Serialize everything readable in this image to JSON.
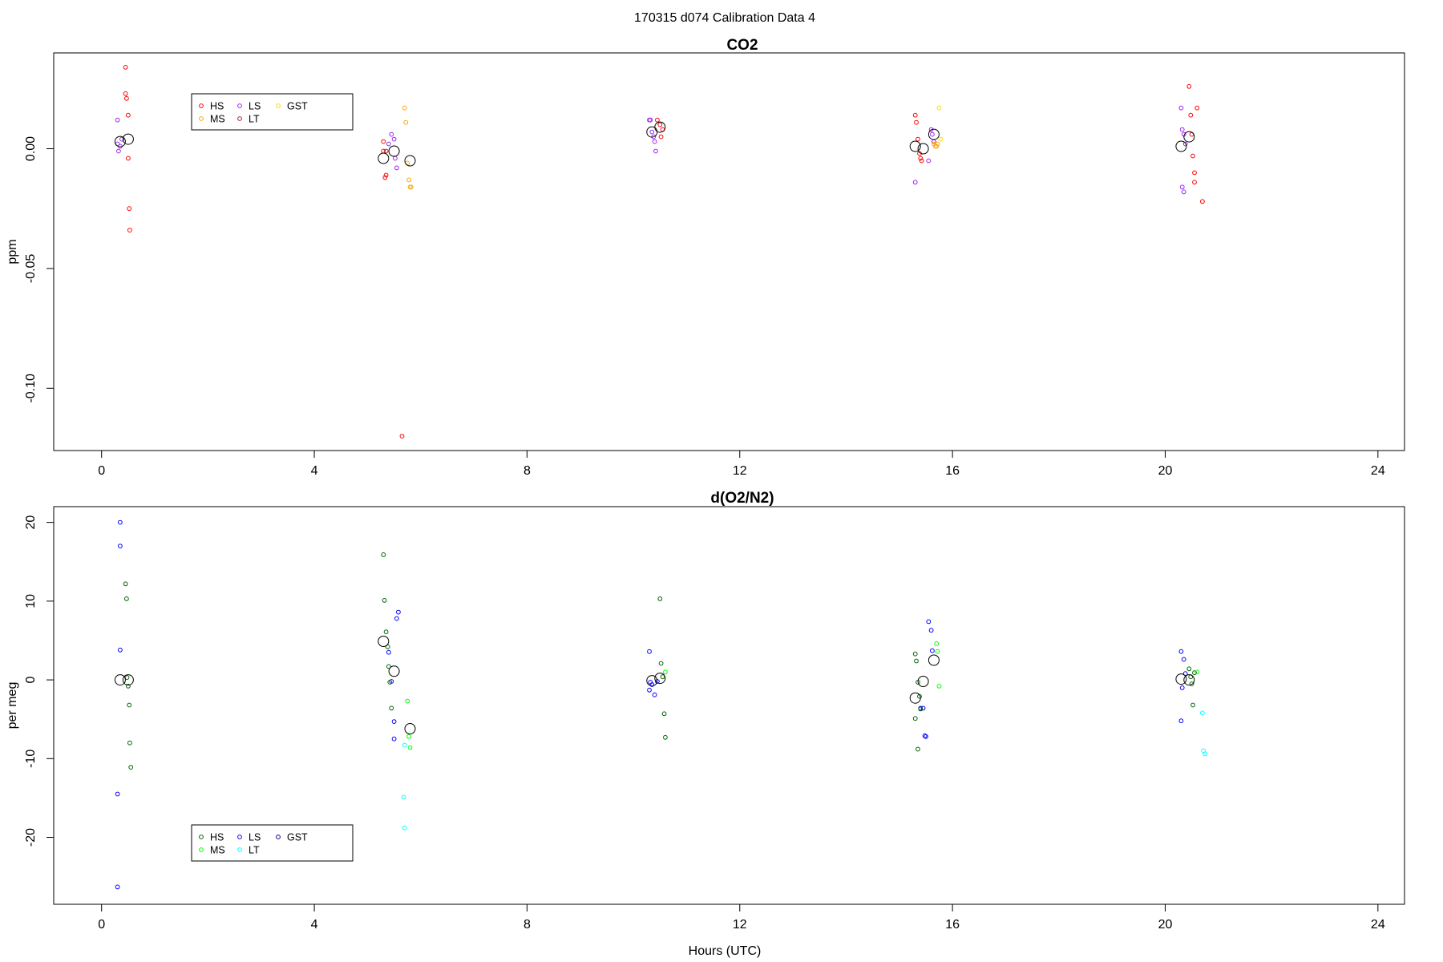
{
  "page": {
    "title": "170315   d074   Calibration Data 4"
  },
  "chart_data": [
    {
      "type": "scatter",
      "title": "CO2",
      "xlabel": "",
      "ylabel": "ppm",
      "xlim": [
        -0.9,
        24.5
      ],
      "ylim": [
        -0.126,
        0.04
      ],
      "xticks": [
        0,
        4,
        8,
        12,
        16,
        20,
        24
      ],
      "yticks": [
        0.0,
        -0.05,
        -0.1
      ],
      "ytick_labels": [
        "0.00",
        "-0.05",
        "-0.10"
      ],
      "grid": false,
      "legend_position": "top-left",
      "legend": [
        {
          "label": "HS",
          "color": "#ff0000"
        },
        {
          "label": "MS",
          "color": "#ffa500"
        },
        {
          "label": "LS",
          "color": "#a020f0"
        },
        {
          "label": "LT",
          "color": "#b22222"
        },
        {
          "label": "GST",
          "color": "#ffd700"
        }
      ],
      "series": [
        {
          "color": "#ff0000",
          "points": [
            [
              0.45,
              0.034
            ],
            [
              0.45,
              0.023
            ],
            [
              0.47,
              0.021
            ],
            [
              0.5,
              0.014
            ],
            [
              0.5,
              -0.004
            ],
            [
              0.52,
              -0.025
            ],
            [
              0.53,
              -0.034
            ],
            [
              5.3,
              0.003
            ],
            [
              5.3,
              -0.001
            ],
            [
              5.33,
              -0.012
            ],
            [
              5.35,
              -0.011
            ],
            [
              5.65,
              -0.12
            ],
            [
              10.45,
              0.012
            ],
            [
              10.5,
              0.01
            ],
            [
              10.52,
              0.005
            ],
            [
              10.55,
              0.008
            ],
            [
              15.3,
              0.014
            ],
            [
              15.32,
              0.011
            ],
            [
              15.35,
              0.004
            ],
            [
              15.38,
              -0.002
            ],
            [
              15.4,
              -0.004
            ],
            [
              15.42,
              -0.005
            ],
            [
              20.45,
              0.026
            ],
            [
              20.48,
              0.014
            ],
            [
              20.5,
              0.006
            ],
            [
              20.52,
              -0.003
            ],
            [
              20.55,
              -0.01
            ],
            [
              20.55,
              -0.014
            ],
            [
              20.6,
              0.017
            ],
            [
              20.7,
              -0.022
            ]
          ]
        },
        {
          "color": "#a020f0",
          "points": [
            [
              0.3,
              0.012
            ],
            [
              0.3,
              0.002
            ],
            [
              0.32,
              -0.001
            ],
            [
              0.35,
              0.001
            ],
            [
              0.38,
              0.004
            ],
            [
              5.4,
              0.002
            ],
            [
              5.45,
              0.006
            ],
            [
              5.5,
              0.004
            ],
            [
              5.52,
              -0.004
            ],
            [
              5.55,
              -0.008
            ],
            [
              10.3,
              0.012
            ],
            [
              10.32,
              0.012
            ],
            [
              10.35,
              0.007
            ],
            [
              10.38,
              0.005
            ],
            [
              10.4,
              0.003
            ],
            [
              10.42,
              -0.001
            ],
            [
              15.6,
              0.008
            ],
            [
              15.62,
              0.006
            ],
            [
              15.65,
              0.003
            ],
            [
              15.55,
              -0.005
            ],
            [
              15.3,
              -0.014
            ],
            [
              20.3,
              0.017
            ],
            [
              20.32,
              0.008
            ],
            [
              20.35,
              0.006
            ],
            [
              20.38,
              0.002
            ],
            [
              20.32,
              -0.016
            ],
            [
              20.35,
              -0.018
            ]
          ]
        },
        {
          "color": "#ffa500",
          "points": [
            [
              5.7,
              0.017
            ],
            [
              5.72,
              0.011
            ],
            [
              5.75,
              -0.006
            ],
            [
              5.78,
              -0.013
            ],
            [
              5.8,
              -0.016
            ],
            [
              5.82,
              -0.016
            ],
            [
              15.65,
              0.002
            ],
            [
              15.68,
              0.001
            ],
            [
              15.7,
              0.001
            ],
            [
              15.72,
              0.002
            ]
          ]
        },
        {
          "color": "#b22222",
          "points": [
            [
              5.35,
              -0.001
            ]
          ]
        },
        {
          "color": "#ffd700",
          "points": [
            [
              15.75,
              0.017
            ],
            [
              15.78,
              0.004
            ]
          ]
        },
        {
          "color": "#000000",
          "kind": "mean",
          "points": [
            [
              0.35,
              0.003
            ],
            [
              0.5,
              0.004
            ],
            [
              5.3,
              -0.004
            ],
            [
              5.5,
              -0.001
            ],
            [
              5.8,
              -0.005
            ],
            [
              10.35,
              0.007
            ],
            [
              10.5,
              0.009
            ],
            [
              15.3,
              0.001
            ],
            [
              15.45,
              0.0
            ],
            [
              15.65,
              0.006
            ],
            [
              20.3,
              0.001
            ],
            [
              20.45,
              0.005
            ]
          ]
        }
      ]
    },
    {
      "type": "scatter",
      "title": "d(O2/N2)",
      "xlabel": "Hours (UTC)",
      "ylabel": "per meg",
      "xlim": [
        -0.9,
        24.5
      ],
      "ylim": [
        -28.5,
        22
      ],
      "xticks": [
        0,
        4,
        8,
        12,
        16,
        20,
        24
      ],
      "yticks": [
        20,
        10,
        0,
        -10,
        -20
      ],
      "ytick_labels": [
        "20",
        "10",
        "0",
        "-10",
        "-20"
      ],
      "grid": false,
      "legend_position": "bottom-left",
      "legend": [
        {
          "label": "HS",
          "color": "#006400"
        },
        {
          "label": "MS",
          "color": "#00ff00"
        },
        {
          "label": "LS",
          "color": "#0000ff"
        },
        {
          "label": "LT",
          "color": "#00ffff"
        },
        {
          "label": "GST",
          "color": "#00008b"
        }
      ],
      "series": [
        {
          "color": "#0000ff",
          "points": [
            [
              0.35,
              20
            ],
            [
              0.35,
              17
            ],
            [
              0.35,
              3.8
            ],
            [
              0.3,
              -14.5
            ],
            [
              0.3,
              -26.3
            ],
            [
              5.4,
              3.5
            ],
            [
              5.45,
              -0.2
            ],
            [
              5.5,
              -5.3
            ],
            [
              5.5,
              -7.5
            ],
            [
              5.55,
              7.8
            ],
            [
              5.58,
              8.6
            ],
            [
              10.3,
              3.6
            ],
            [
              10.3,
              -1.3
            ],
            [
              10.32,
              -0.3
            ],
            [
              10.35,
              -0.6
            ],
            [
              10.4,
              -1.9
            ],
            [
              10.45,
              -0.2
            ],
            [
              15.55,
              7.4
            ],
            [
              15.6,
              6.3
            ],
            [
              15.62,
              3.7
            ],
            [
              15.45,
              -3.6
            ],
            [
              15.48,
              -7.1
            ],
            [
              15.5,
              -7.2
            ],
            [
              15.4,
              -3.6
            ],
            [
              20.3,
              3.6
            ],
            [
              20.35,
              2.6
            ],
            [
              20.38,
              0.8
            ],
            [
              20.32,
              -1.0
            ],
            [
              20.3,
              -5.2
            ]
          ]
        },
        {
          "color": "#006400",
          "points": [
            [
              0.45,
              12.2
            ],
            [
              0.47,
              10.3
            ],
            [
              0.48,
              0.3
            ],
            [
              0.5,
              -0.8
            ],
            [
              0.52,
              -3.2
            ],
            [
              0.53,
              -8.0
            ],
            [
              0.55,
              -11.1
            ],
            [
              5.3,
              15.9
            ],
            [
              5.32,
              10.1
            ],
            [
              5.35,
              6.1
            ],
            [
              5.38,
              4.2
            ],
            [
              5.4,
              1.7
            ],
            [
              5.42,
              -0.3
            ],
            [
              5.45,
              -3.6
            ],
            [
              10.5,
              10.3
            ],
            [
              10.52,
              2.1
            ],
            [
              10.55,
              0.4
            ],
            [
              10.58,
              -4.3
            ],
            [
              10.6,
              -7.3
            ],
            [
              15.3,
              3.3
            ],
            [
              15.32,
              2.4
            ],
            [
              15.35,
              -0.3
            ],
            [
              15.38,
              -2.1
            ],
            [
              15.4,
              -3.7
            ],
            [
              15.3,
              -4.9
            ],
            [
              15.35,
              -8.8
            ],
            [
              20.45,
              1.4
            ],
            [
              20.48,
              0.4
            ],
            [
              20.5,
              -0.5
            ],
            [
              20.52,
              -3.2
            ],
            [
              20.55,
              0.9
            ]
          ]
        },
        {
          "color": "#00ff00",
          "points": [
            [
              5.75,
              -2.7
            ],
            [
              5.78,
              -7.2
            ],
            [
              5.8,
              -8.6
            ],
            [
              15.7,
              4.6
            ],
            [
              15.72,
              3.6
            ],
            [
              15.75,
              -0.8
            ],
            [
              10.6,
              1.0
            ],
            [
              20.6,
              1.0
            ]
          ]
        },
        {
          "color": "#00ffff",
          "points": [
            [
              5.7,
              -8.3
            ],
            [
              5.68,
              -14.9
            ],
            [
              5.7,
              -18.8
            ],
            [
              20.7,
              -4.2
            ],
            [
              20.72,
              -9.0
            ],
            [
              20.75,
              -9.4
            ]
          ]
        },
        {
          "color": "#000000",
          "kind": "mean",
          "points": [
            [
              0.35,
              0.0
            ],
            [
              0.5,
              0.0
            ],
            [
              5.3,
              4.9
            ],
            [
              5.5,
              1.1
            ],
            [
              5.8,
              -6.2
            ],
            [
              10.35,
              -0.1
            ],
            [
              10.5,
              0.2
            ],
            [
              15.3,
              -2.3
            ],
            [
              15.45,
              -0.2
            ],
            [
              15.65,
              2.5
            ],
            [
              20.3,
              0.1
            ],
            [
              20.45,
              0.0
            ]
          ]
        }
      ]
    }
  ]
}
